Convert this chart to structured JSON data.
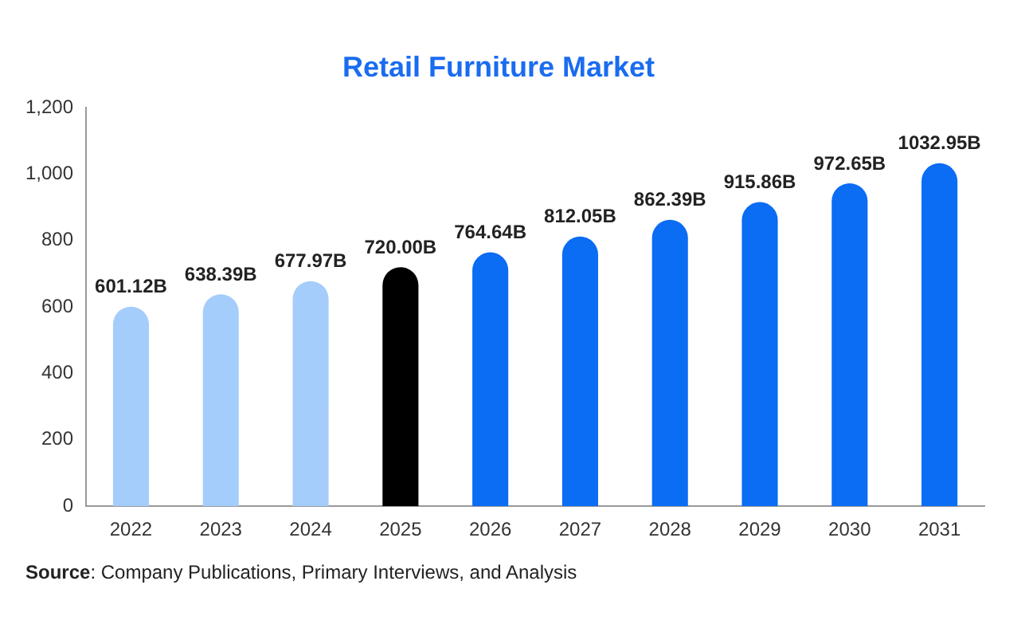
{
  "chart_data": {
    "type": "bar",
    "title": "Retail Furniture Market",
    "categories": [
      "2022",
      "2023",
      "2024",
      "2025",
      "2026",
      "2027",
      "2028",
      "2029",
      "2030",
      "2031"
    ],
    "values": [
      601.12,
      638.39,
      677.97,
      720.0,
      764.64,
      812.05,
      862.39,
      915.86,
      972.65,
      1032.95
    ],
    "colors": [
      "#a5cdfb",
      "#a5cdfb",
      "#a5cdfb",
      "#000000",
      "#0b6cf4",
      "#0b6cf4",
      "#0b6cf4",
      "#0b6cf4",
      "#0b6cf4",
      "#0b6cf4"
    ],
    "value_labels": [
      "601.12B",
      "638.39B",
      "677.97B",
      "720.00B",
      "764.64B",
      "812.05B",
      "862.39B",
      "915.86B",
      "972.65B",
      "1032.95B"
    ],
    "ylim": [
      0,
      1200
    ],
    "yticks": [
      0,
      200,
      400,
      600,
      800,
      {
        "value": 1000,
        "label": "1,000"
      },
      {
        "value": 1200,
        "label": "1,200"
      }
    ],
    "grid": false,
    "legend": false,
    "annotations": [
      "Source: Company Publications, Primary Interviews, and Analysis"
    ]
  }
}
